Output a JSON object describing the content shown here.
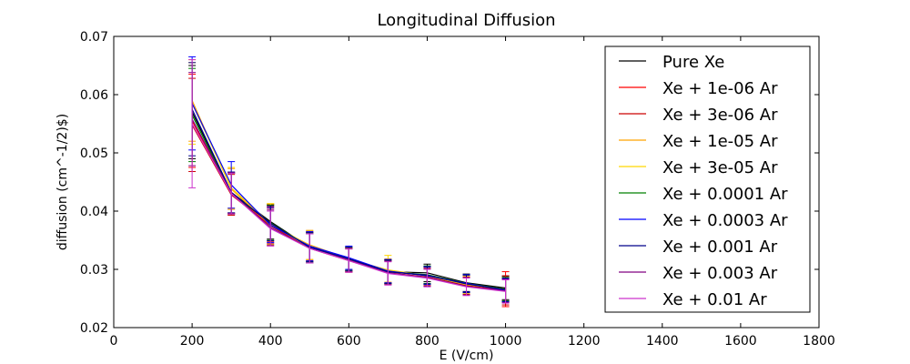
{
  "chart_data": {
    "type": "line",
    "title": "Longitudinal Diffusion",
    "xlabel": "E (V/cm)",
    "ylabel": "diffusion (cm^-1/2)$)",
    "xlim": [
      0,
      1800
    ],
    "ylim": [
      0.02,
      0.07
    ],
    "xticks": [
      0,
      200,
      400,
      600,
      800,
      1000,
      1200,
      1400,
      1600,
      1800
    ],
    "yticks": [
      0.02,
      0.03,
      0.04,
      0.05,
      0.06,
      0.07
    ],
    "xtick_labels": [
      "0",
      "200",
      "400",
      "600",
      "800",
      "1000",
      "1200",
      "1400",
      "1600",
      "1800"
    ],
    "ytick_labels": [
      "0.02",
      "0.03",
      "0.04",
      "0.05",
      "0.06",
      "0.07"
    ],
    "grid": false,
    "legend_position": "top-right",
    "x": [
      200,
      300,
      400,
      500,
      600,
      700,
      800,
      900,
      1000
    ],
    "series": [
      {
        "name": "Pure Xe",
        "color": "#000000",
        "values": [
          0.057,
          0.0432,
          0.0382,
          0.0338,
          0.0318,
          0.0296,
          0.0294,
          0.0277,
          0.0268
        ],
        "errors": [
          0.008,
          0.0035,
          0.003,
          0.0025,
          0.002,
          0.002,
          0.0015,
          0.0015,
          0.002
        ]
      },
      {
        "name": "Xe + 1e-06 Ar",
        "color": "#ff0000",
        "values": [
          0.0555,
          0.043,
          0.0378,
          0.034,
          0.0316,
          0.0296,
          0.029,
          0.0275,
          0.0266
        ],
        "errors": [
          0.008,
          0.0035,
          0.003,
          0.0025,
          0.002,
          0.002,
          0.0015,
          0.0015,
          0.003
        ]
      },
      {
        "name": "Xe + 3e-06 Ar",
        "color": "#cc0000",
        "values": [
          0.0548,
          0.0428,
          0.0375,
          0.0336,
          0.0315,
          0.0294,
          0.0287,
          0.0272,
          0.0264
        ],
        "errors": [
          0.008,
          0.0035,
          0.003,
          0.0025,
          0.002,
          0.002,
          0.0015,
          0.0015,
          0.0025
        ]
      },
      {
        "name": "Xe + 1e-05 Ar",
        "color": "#ffa500",
        "values": [
          0.059,
          0.0438,
          0.0376,
          0.0342,
          0.0318,
          0.0298,
          0.0289,
          0.0274,
          0.0266
        ],
        "errors": [
          0.007,
          0.0035,
          0.0035,
          0.0025,
          0.002,
          0.002,
          0.0015,
          0.0015,
          0.002
        ]
      },
      {
        "name": "Xe + 3e-05 Ar",
        "color": "#ffd700",
        "values": [
          0.0585,
          0.044,
          0.0378,
          0.0341,
          0.0317,
          0.0299,
          0.0289,
          0.0274,
          0.0266
        ],
        "errors": [
          0.007,
          0.0035,
          0.0035,
          0.0025,
          0.002,
          0.0025,
          0.0015,
          0.0015,
          0.002
        ]
      },
      {
        "name": "Xe + 0.0001 Ar",
        "color": "#008000",
        "values": [
          0.0565,
          0.043,
          0.038,
          0.0338,
          0.0318,
          0.0296,
          0.0291,
          0.0276,
          0.0266
        ],
        "errors": [
          0.008,
          0.0035,
          0.003,
          0.0025,
          0.002,
          0.002,
          0.0015,
          0.0015,
          0.002
        ]
      },
      {
        "name": "Xe + 0.0003 Ar",
        "color": "#0000ff",
        "values": [
          0.0585,
          0.0445,
          0.0376,
          0.034,
          0.032,
          0.0297,
          0.0289,
          0.0276,
          0.0264
        ],
        "errors": [
          0.008,
          0.004,
          0.003,
          0.0025,
          0.002,
          0.002,
          0.0015,
          0.0015,
          0.002
        ]
      },
      {
        "name": "Xe + 0.001 Ar",
        "color": "#00008b",
        "values": [
          0.0575,
          0.0432,
          0.0379,
          0.0338,
          0.0318,
          0.0296,
          0.029,
          0.0275,
          0.0265
        ],
        "errors": [
          0.008,
          0.0035,
          0.003,
          0.0025,
          0.002,
          0.002,
          0.0015,
          0.0015,
          0.002
        ]
      },
      {
        "name": "Xe + 0.003 Ar",
        "color": "#800080",
        "values": [
          0.0558,
          0.0431,
          0.0372,
          0.0336,
          0.0316,
          0.0294,
          0.0286,
          0.0271,
          0.0263
        ],
        "errors": [
          0.008,
          0.0035,
          0.003,
          0.0025,
          0.002,
          0.002,
          0.0015,
          0.0015,
          0.002
        ]
      },
      {
        "name": "Xe + 0.01 Ar",
        "color": "#cc33cc",
        "values": [
          0.055,
          0.043,
          0.037,
          0.0336,
          0.0315,
          0.0293,
          0.0285,
          0.027,
          0.0262
        ],
        "errors": [
          0.011,
          0.0035,
          0.003,
          0.0025,
          0.002,
          0.002,
          0.0015,
          0.0015,
          0.002
        ]
      }
    ]
  }
}
